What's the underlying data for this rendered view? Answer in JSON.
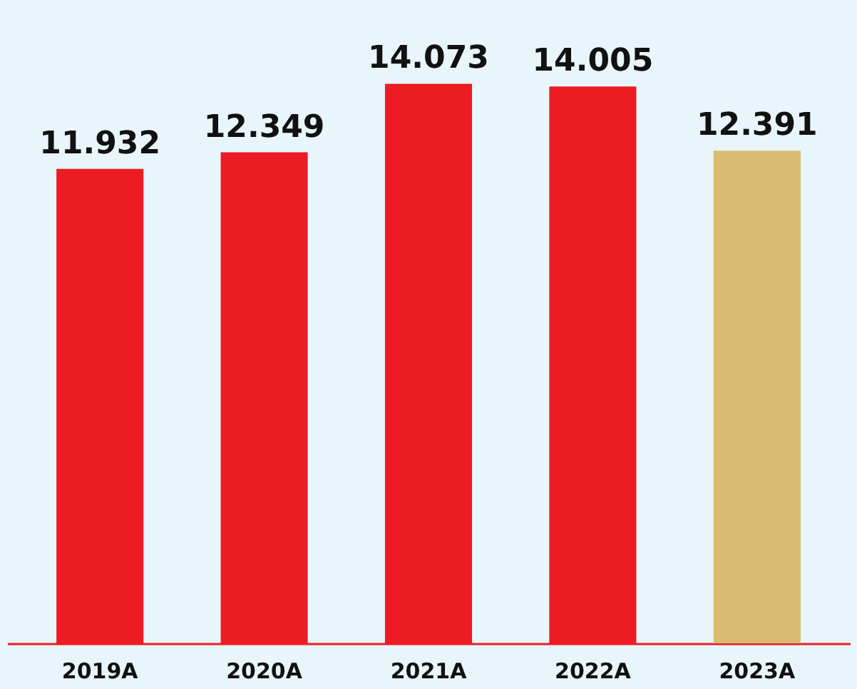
{
  "chart_data": {
    "type": "bar",
    "categories": [
      "2019A",
      "2020A",
      "2021A",
      "2022A",
      "2023A"
    ],
    "values": [
      11.932,
      12.349,
      14.073,
      14.005,
      12.391
    ],
    "colors": [
      "#ed1c24",
      "#ed1c24",
      "#ed1c24",
      "#ed1c24",
      "#d9bc72"
    ],
    "data_labels": true,
    "tick_labels": "x",
    "grid": false
  }
}
